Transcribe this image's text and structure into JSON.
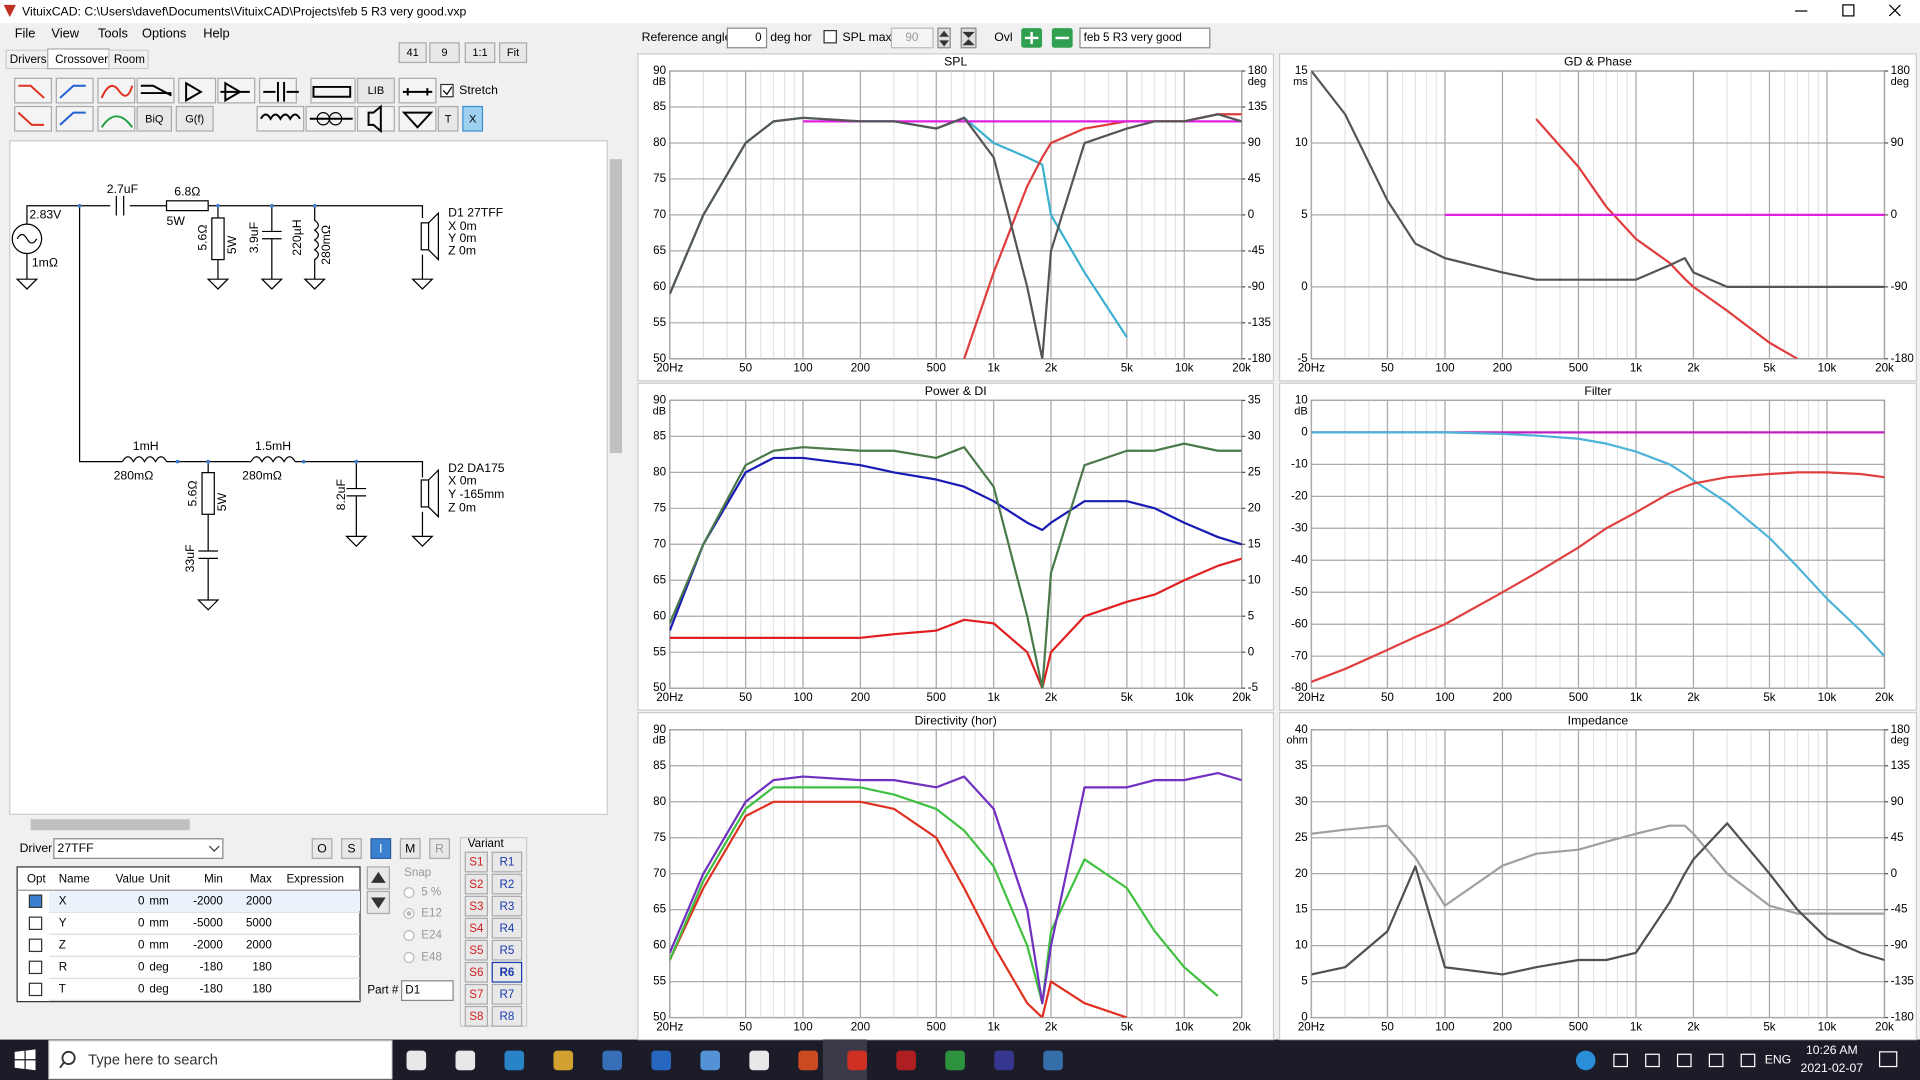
{
  "window": {
    "title": "VituixCAD: C:\\Users\\davef\\Documents\\VituixCAD\\Projects\\feb 5 R3 very good.vxp",
    "menu": [
      "File",
      "View",
      "Tools",
      "Options",
      "Help"
    ],
    "tabs": [
      "Drivers",
      "Crossover",
      "Room"
    ],
    "zoom": [
      "41",
      "9",
      "1:1",
      "Fit"
    ]
  },
  "toolbar": {
    "reference_angle_label": "Reference angle",
    "reference_angle": "0",
    "deg_hor": "deg hor",
    "spl_max_label": "SPL max",
    "spl_max": "90",
    "ovl": "Ovl",
    "overlay_name": "feb 5 R3 very good"
  },
  "toolbox": {
    "buttons": [
      "LIB",
      "BiQ",
      "G(f)",
      "T",
      "X"
    ],
    "stretch": "Stretch"
  },
  "schematic": {
    "labels": [
      "2.83V",
      "1mΩ",
      "2.7uF",
      "6.8Ω",
      "5W",
      "5.6Ω",
      "5W",
      "3.9uF",
      "220µH",
      "280mΩ",
      "D1 27TFF",
      "X 0m",
      "Y 0m",
      "Z 0m",
      "1mH",
      "280mΩ",
      "1.5mH",
      "280mΩ",
      "5.6Ω",
      "5W",
      "33uF",
      "8.2uF",
      "D2 DA175",
      "X 0m",
      "Y -165mm",
      "Z 0m"
    ]
  },
  "driver_panel": {
    "label": "Driver",
    "driver": "27TFF",
    "buttons": [
      "O",
      "S",
      "I",
      "M",
      "R"
    ],
    "snap": "Snap",
    "snap_options": [
      "5 %",
      "E12",
      "E24",
      "E48"
    ],
    "part_label": "Part #",
    "part": "D1"
  },
  "table": {
    "headers": [
      "Opt",
      "Name",
      "Value",
      "Unit",
      "Min",
      "Max",
      "Expression"
    ],
    "rows": [
      [
        "X",
        "0",
        "mm",
        "-2000",
        "2000"
      ],
      [
        "Y",
        "0",
        "mm",
        "-5000",
        "5000"
      ],
      [
        "Z",
        "0",
        "mm",
        "-2000",
        "2000"
      ],
      [
        "R",
        "0",
        "deg",
        "-180",
        "180"
      ],
      [
        "T",
        "0",
        "deg",
        "-180",
        "180"
      ]
    ]
  },
  "variant": {
    "label": "Variant",
    "s": [
      "S1",
      "S2",
      "S3",
      "S4",
      "S5",
      "S6",
      "S7",
      "S8"
    ],
    "r": [
      "R1",
      "R2",
      "R3",
      "R4",
      "R5",
      "R6",
      "R7",
      "R8"
    ]
  },
  "taskbar": {
    "search": "Type here to search",
    "lang": "ENG",
    "time": "10:26 AM",
    "date": "2021-02-07"
  },
  "chart_data": [
    {
      "type": "line",
      "title": "SPL",
      "y_label": "dB",
      "y2_label": "deg",
      "log_x": true,
      "grid": true,
      "x": [
        20,
        30,
        50,
        70,
        100,
        200,
        300,
        500,
        700,
        1000,
        1500,
        1800,
        2000,
        3000,
        5000,
        7000,
        10000,
        15000,
        20000
      ],
      "xlim": [
        20,
        20000
      ],
      "xticks": [
        {
          "value": 20,
          "label": "20Hz"
        },
        50,
        100,
        200,
        500,
        {
          "value": 1000,
          "label": "1k"
        },
        {
          "value": 2000,
          "label": "2k"
        },
        {
          "value": 5000,
          "label": "5k"
        },
        {
          "value": 10000,
          "label": "10k"
        },
        {
          "value": 20000,
          "label": "20k"
        }
      ],
      "ylim": [
        50,
        90
      ],
      "yticks": [
        50,
        55,
        60,
        65,
        70,
        75,
        80,
        85,
        90
      ],
      "y2lim": [
        -180,
        180
      ],
      "y2ticks": [
        -180,
        -135,
        -90,
        -45,
        0,
        45,
        90,
        135,
        180
      ],
      "series": [
        {
          "color": "#3bb0d0",
          "values": [
            59,
            70,
            80,
            83,
            83.5,
            83,
            83,
            82,
            83.5,
            80,
            78,
            77,
            70,
            62,
            53,
            null,
            null,
            null,
            null
          ]
        },
        {
          "color": "#e03c3c",
          "values": [
            null,
            null,
            null,
            null,
            null,
            null,
            null,
            null,
            50,
            62,
            74,
            78,
            80,
            82,
            83,
            83,
            83,
            84,
            84
          ]
        },
        {
          "color": "#e020e0",
          "values": [
            null,
            null,
            null,
            null,
            83,
            83,
            83,
            83,
            83,
            83,
            83,
            83,
            83,
            83,
            83,
            83,
            83,
            83,
            83
          ]
        },
        {
          "color": "#555555",
          "values": [
            59,
            70,
            80,
            83,
            83.5,
            83,
            83,
            82,
            83.5,
            78,
            60,
            50,
            65,
            80,
            82,
            83,
            83,
            84,
            83
          ]
        }
      ]
    },
    {
      "type": "line",
      "title": "GD & Phase",
      "y_label": "ms",
      "y2_label": "deg",
      "log_x": true,
      "grid": true,
      "x": [
        20,
        30,
        50,
        70,
        100,
        200,
        300,
        500,
        700,
        1000,
        1500,
        1800,
        2000,
        3000,
        5000,
        7000,
        10000,
        15000,
        20000
      ],
      "xlim": [
        20,
        20000
      ],
      "xticks": [
        {
          "value": 20,
          "label": "20Hz"
        },
        50,
        100,
        200,
        500,
        {
          "value": 1000,
          "label": "1k"
        },
        {
          "value": 2000,
          "label": "2k"
        },
        {
          "value": 5000,
          "label": "5k"
        },
        {
          "value": 10000,
          "label": "10k"
        },
        {
          "value": 20000,
          "label": "20k"
        }
      ],
      "ylim": [
        -5,
        15
      ],
      "yticks": [
        -5,
        0,
        5,
        10,
        15
      ],
      "y2lim": [
        -180,
        180
      ],
      "y2ticks": [
        -180,
        -90,
        0,
        90,
        180
      ],
      "series": [
        {
          "color": "#e03c3c",
          "axis": "y2",
          "values": [
            null,
            null,
            null,
            null,
            null,
            null,
            120,
            60,
            10,
            -30,
            -60,
            -80,
            -90,
            -120,
            -160,
            -180,
            null,
            null,
            null
          ]
        },
        {
          "color": "#e020e0",
          "values": [
            null,
            null,
            null,
            null,
            5,
            5,
            5,
            5,
            5,
            5,
            5,
            5,
            5,
            5,
            5,
            5,
            5,
            5,
            5
          ]
        },
        {
          "color": "#555555",
          "values": [
            15,
            12,
            6,
            3,
            2,
            1,
            0.5,
            0.5,
            0.5,
            0.5,
            1.5,
            2,
            1,
            0,
            0,
            0,
            0,
            0,
            0
          ]
        }
      ]
    },
    {
      "type": "line",
      "title": "Power & DI",
      "y_label": "dB",
      "log_x": true,
      "grid": true,
      "x": [
        20,
        30,
        50,
        70,
        100,
        200,
        300,
        500,
        700,
        1000,
        1500,
        1800,
        2000,
        3000,
        5000,
        7000,
        10000,
        15000,
        20000
      ],
      "xlim": [
        20,
        20000
      ],
      "xticks": [
        {
          "value": 20,
          "label": "20Hz"
        },
        50,
        100,
        200,
        500,
        {
          "value": 1000,
          "label": "1k"
        },
        {
          "value": 2000,
          "label": "2k"
        },
        {
          "value": 5000,
          "label": "5k"
        },
        {
          "value": 10000,
          "label": "10k"
        },
        {
          "value": 20000,
          "label": "20k"
        }
      ],
      "ylim": [
        50,
        90
      ],
      "yticks": [
        50,
        55,
        60,
        65,
        70,
        75,
        80,
        85,
        90
      ],
      "y2lim": [
        -5,
        35
      ],
      "y2ticks": [
        -5,
        0,
        5,
        10,
        15,
        20,
        25,
        30,
        35
      ],
      "series": [
        {
          "color": "#e02020",
          "axis": "y2",
          "values": [
            2,
            2,
            2,
            2,
            2,
            2,
            2.5,
            3,
            4.5,
            4,
            0,
            -5,
            0,
            5,
            7,
            8,
            10,
            12,
            13
          ]
        },
        {
          "color": "#1a1ab4",
          "values": [
            58,
            70,
            80,
            82,
            82,
            81,
            80,
            79,
            78,
            76,
            73,
            72,
            73,
            76,
            76,
            75,
            73,
            71,
            70
          ]
        },
        {
          "color": "#4a7a4a",
          "values": [
            59,
            70,
            81,
            83,
            83.5,
            83,
            83,
            82,
            83.5,
            78,
            60,
            50,
            66,
            81,
            83,
            83,
            84,
            83,
            83
          ]
        }
      ]
    },
    {
      "type": "line",
      "title": "Filter",
      "y_label": "dB",
      "log_x": true,
      "grid": true,
      "x": [
        20,
        30,
        50,
        70,
        100,
        200,
        300,
        500,
        700,
        1000,
        1500,
        1800,
        2000,
        3000,
        5000,
        7000,
        10000,
        15000,
        20000
      ],
      "xlim": [
        20,
        20000
      ],
      "xticks": [
        {
          "value": 20,
          "label": "20Hz"
        },
        50,
        100,
        200,
        500,
        {
          "value": 1000,
          "label": "1k"
        },
        {
          "value": 2000,
          "label": "2k"
        },
        {
          "value": 5000,
          "label": "5k"
        },
        {
          "value": 10000,
          "label": "10k"
        },
        {
          "value": 20000,
          "label": "20k"
        }
      ],
      "ylim": [
        -80,
        10
      ],
      "yticks": [
        -80,
        -70,
        -60,
        -50,
        -40,
        -30,
        -20,
        -10,
        0,
        10
      ],
      "series": [
        {
          "color": "#c020c0",
          "values": [
            0,
            0,
            0,
            0,
            0,
            0,
            0,
            0,
            0,
            0,
            0,
            0,
            0,
            0,
            0,
            0,
            0,
            0,
            0
          ]
        },
        {
          "color": "#4fb3d9",
          "values": [
            0,
            0,
            0,
            0,
            0,
            -0.5,
            -1,
            -2,
            -3.5,
            -6,
            -10,
            -13,
            -15,
            -22,
            -33,
            -42,
            -52,
            -62,
            -70
          ]
        },
        {
          "color": "#e04040",
          "values": [
            -78,
            -74,
            -68,
            -64,
            -60,
            -50,
            -44,
            -36,
            -30,
            -25,
            -19,
            -17,
            -16,
            -14,
            -13,
            -12.5,
            -12.5,
            -13,
            -14
          ]
        }
      ]
    },
    {
      "type": "line",
      "title": "Directivity (hor)",
      "y_label": "dB",
      "log_x": true,
      "grid": true,
      "x": [
        20,
        30,
        50,
        70,
        100,
        200,
        300,
        500,
        700,
        1000,
        1500,
        1800,
        2000,
        3000,
        5000,
        7000,
        10000,
        15000,
        20000
      ],
      "xlim": [
        20,
        20000
      ],
      "xticks": [
        {
          "value": 20,
          "label": "20Hz"
        },
        50,
        100,
        200,
        500,
        {
          "value": 1000,
          "label": "1k"
        },
        {
          "value": 2000,
          "label": "2k"
        },
        {
          "value": 5000,
          "label": "5k"
        },
        {
          "value": 10000,
          "label": "10k"
        },
        {
          "value": 20000,
          "label": "20k"
        }
      ],
      "ylim": [
        50,
        90
      ],
      "yticks": [
        50,
        55,
        60,
        65,
        70,
        75,
        80,
        85,
        90
      ],
      "series": [
        {
          "color": "#e03020",
          "values": [
            58,
            68,
            78,
            80,
            80,
            80,
            79,
            75,
            68,
            60,
            52,
            50,
            55,
            52,
            50,
            null,
            null,
            null,
            null
          ]
        },
        {
          "color": "#40c040",
          "values": [
            58,
            69,
            79,
            82,
            82,
            82,
            81,
            79,
            76,
            71,
            60,
            52,
            62,
            72,
            68,
            62,
            57,
            53,
            null
          ]
        },
        {
          "color": "#7030c0",
          "values": [
            59,
            70,
            80,
            83,
            83.5,
            83,
            83,
            82,
            83.5,
            79,
            65,
            52,
            60,
            82,
            82,
            83,
            83,
            84,
            83
          ]
        }
      ]
    },
    {
      "type": "line",
      "title": "Impedance",
      "y_label": "ohm",
      "y2_label": "deg",
      "log_x": true,
      "grid": true,
      "x": [
        20,
        30,
        50,
        70,
        100,
        200,
        300,
        500,
        700,
        1000,
        1500,
        1800,
        2000,
        3000,
        5000,
        7000,
        10000,
        15000,
        20000
      ],
      "xlim": [
        20,
        20000
      ],
      "xticks": [
        {
          "value": 20,
          "label": "20Hz"
        },
        50,
        100,
        200,
        500,
        {
          "value": 1000,
          "label": "1k"
        },
        {
          "value": 2000,
          "label": "2k"
        },
        {
          "value": 5000,
          "label": "5k"
        },
        {
          "value": 10000,
          "label": "10k"
        },
        {
          "value": 20000,
          "label": "20k"
        }
      ],
      "ylim": [
        0,
        40
      ],
      "yticks": [
        0,
        5,
        10,
        15,
        20,
        25,
        30,
        35,
        40
      ],
      "y2lim": [
        -180,
        180
      ],
      "y2ticks": [
        -180,
        -135,
        -90,
        -45,
        0,
        45,
        90,
        135,
        180
      ],
      "series": [
        {
          "color": "#a0a0a0",
          "axis": "y2",
          "values": [
            50,
            55,
            60,
            20,
            -40,
            10,
            25,
            30,
            40,
            50,
            60,
            60,
            50,
            0,
            -40,
            -50,
            -50,
            -50,
            -50
          ]
        },
        {
          "color": "#505050",
          "values": [
            6,
            7,
            12,
            21,
            7,
            6,
            7,
            8,
            8,
            9,
            16,
            20,
            22,
            27,
            20,
            15,
            11,
            9,
            8
          ]
        }
      ]
    }
  ]
}
